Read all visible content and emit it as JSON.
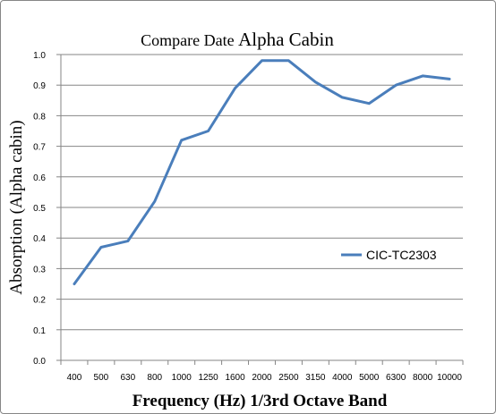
{
  "chart_data": {
    "type": "line",
    "title_part1": "Compare Date ",
    "title_part2": "Alpha Cabin",
    "xlabel": "Frequency (Hz) 1/3rd Octave Band",
    "ylabel": "Absorption (Alpha cabin)",
    "categories": [
      "400",
      "500",
      "630",
      "800",
      "1000",
      "1250",
      "1600",
      "2000",
      "2500",
      "3150",
      "4000",
      "5000",
      "6300",
      "8000",
      "10000"
    ],
    "ylim": [
      0.0,
      1.0
    ],
    "yticks": [
      "0.0",
      "0.1",
      "0.2",
      "0.3",
      "0.4",
      "0.5",
      "0.6",
      "0.7",
      "0.8",
      "0.9",
      "1.0"
    ],
    "grid": "horizontal",
    "legend_position": "right",
    "series": [
      {
        "name": "CIC-TC2303",
        "color": "#4a7ebb",
        "values": [
          0.25,
          0.37,
          0.39,
          0.52,
          0.72,
          0.75,
          0.89,
          0.98,
          0.98,
          0.91,
          0.86,
          0.84,
          0.9,
          0.93,
          0.92
        ]
      }
    ]
  }
}
